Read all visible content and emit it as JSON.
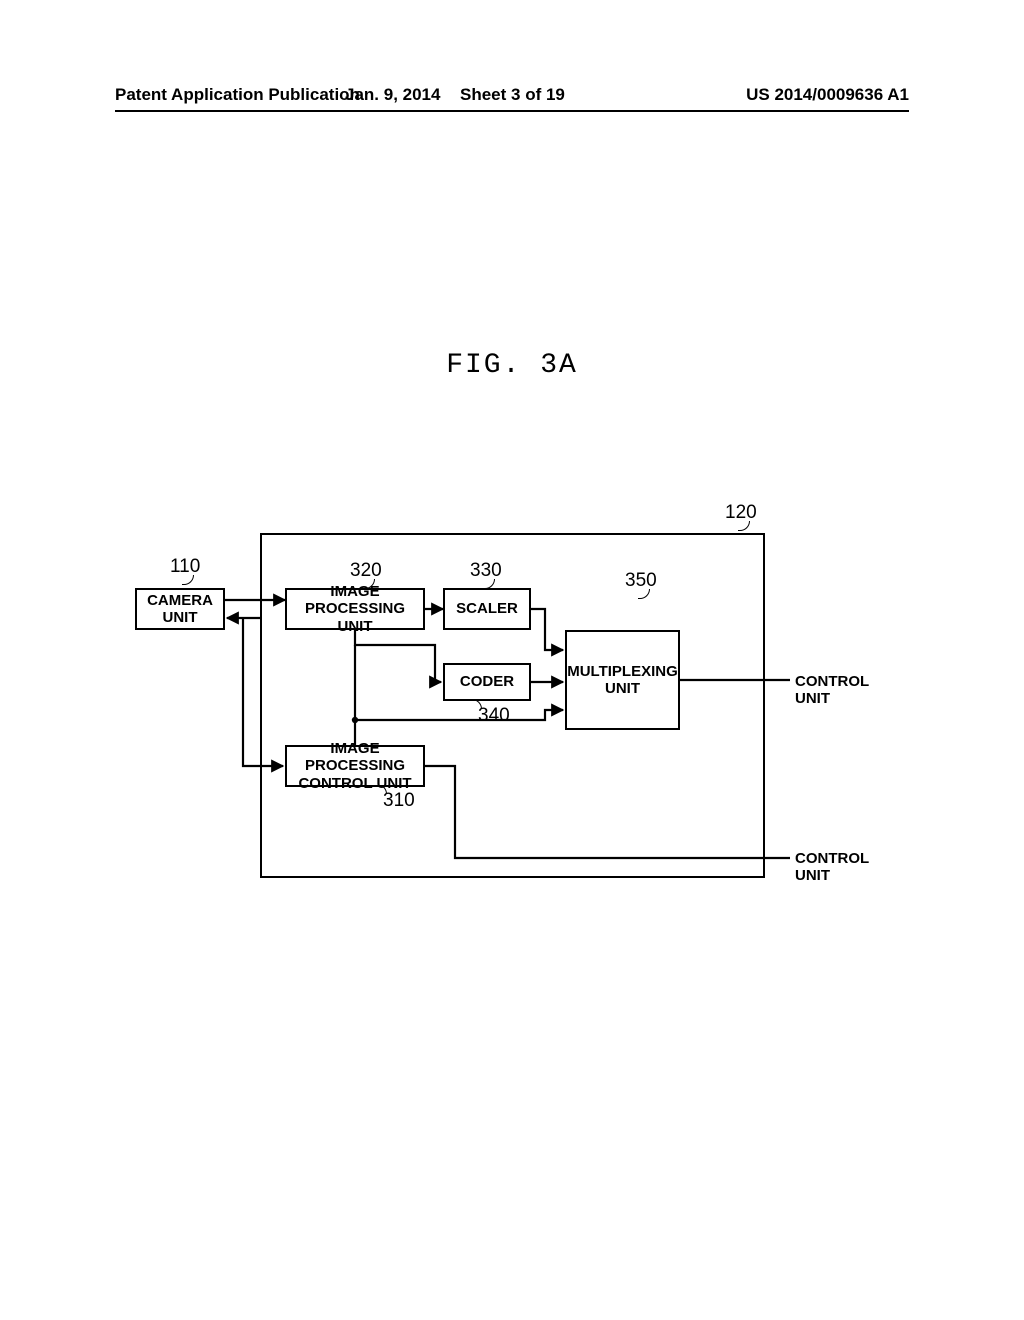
{
  "header": {
    "publication": "Patent Application Publication",
    "date": "Jan. 9, 2014",
    "sheet": "Sheet 3 of 19",
    "docnum": "US 2014/0009636 A1"
  },
  "figure_title": "FIG. 3A",
  "refs": {
    "r110": "110",
    "r120": "120",
    "r310": "310",
    "r320": "320",
    "r330": "330",
    "r340": "340",
    "r350": "350"
  },
  "blocks": {
    "camera": "CAMERA\nUNIT",
    "ipu": "IMAGE PROCESSING\nUNIT",
    "scaler": "SCALER",
    "coder": "CODER",
    "ipcu": "IMAGE PROCESSING\nCONTROL UNIT",
    "mux": "MULTIPLEXING\nUNIT"
  },
  "external": {
    "control1": "CONTROL UNIT",
    "control2": "CONTROL UNIT"
  },
  "style": {
    "stroke": "#000000",
    "stroke_width": 2.2,
    "arrow_size": 9
  }
}
